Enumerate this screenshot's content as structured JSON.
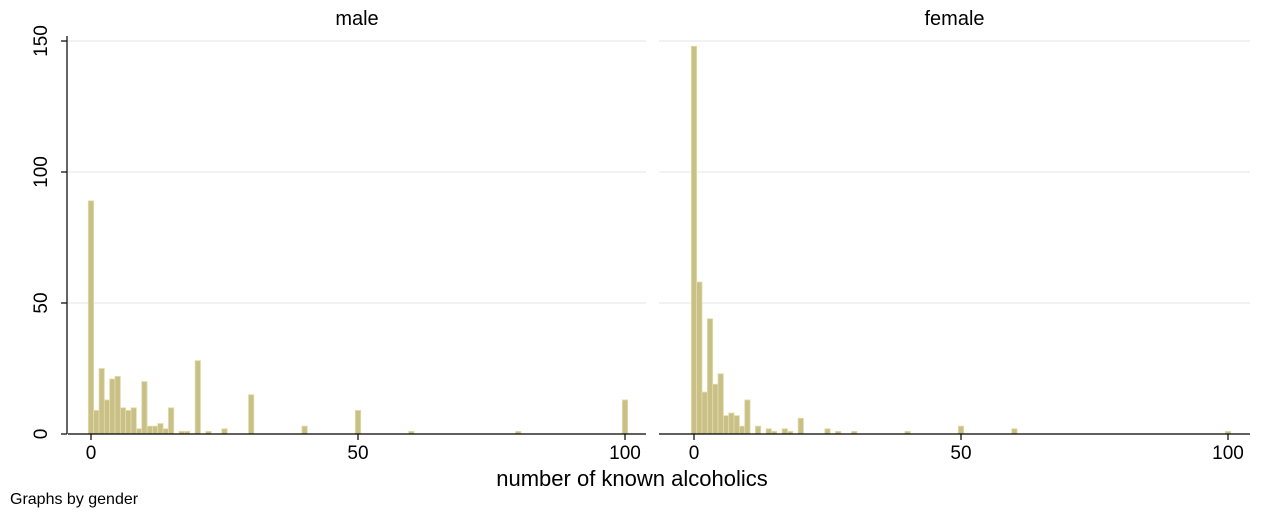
{
  "chart_data": {
    "type": "bar",
    "xlabel": "number of known alcoholics",
    "note": "Graphs by gender",
    "xlim": [
      0,
      100
    ],
    "ylim": [
      0,
      150
    ],
    "xticks": [
      0,
      50,
      100
    ],
    "yticks": [
      0,
      50,
      100,
      150
    ],
    "bar_color": "#c9c087",
    "grid": true,
    "panels": [
      {
        "title": "male",
        "x": [
          0,
          1,
          2,
          3,
          4,
          5,
          6,
          7,
          8,
          9,
          10,
          11,
          12,
          13,
          14,
          15,
          17,
          18,
          20,
          22,
          25,
          30,
          40,
          50,
          60,
          80,
          100
        ],
        "values": [
          89,
          9,
          25,
          13,
          21,
          22,
          10,
          9,
          10,
          2,
          20,
          3,
          3,
          4,
          2,
          10,
          1,
          1,
          28,
          1,
          2,
          15,
          3,
          9,
          1,
          1,
          13
        ]
      },
      {
        "title": "female",
        "x": [
          0,
          1,
          2,
          3,
          4,
          5,
          6,
          7,
          8,
          9,
          10,
          12,
          14,
          15,
          17,
          18,
          20,
          25,
          27,
          30,
          40,
          50,
          60,
          100
        ],
        "values": [
          148,
          58,
          16,
          44,
          19,
          23,
          7,
          8,
          7,
          3,
          13,
          3,
          2,
          1,
          2,
          1,
          6,
          2,
          1,
          1,
          1,
          3,
          2,
          1
        ]
      }
    ]
  }
}
